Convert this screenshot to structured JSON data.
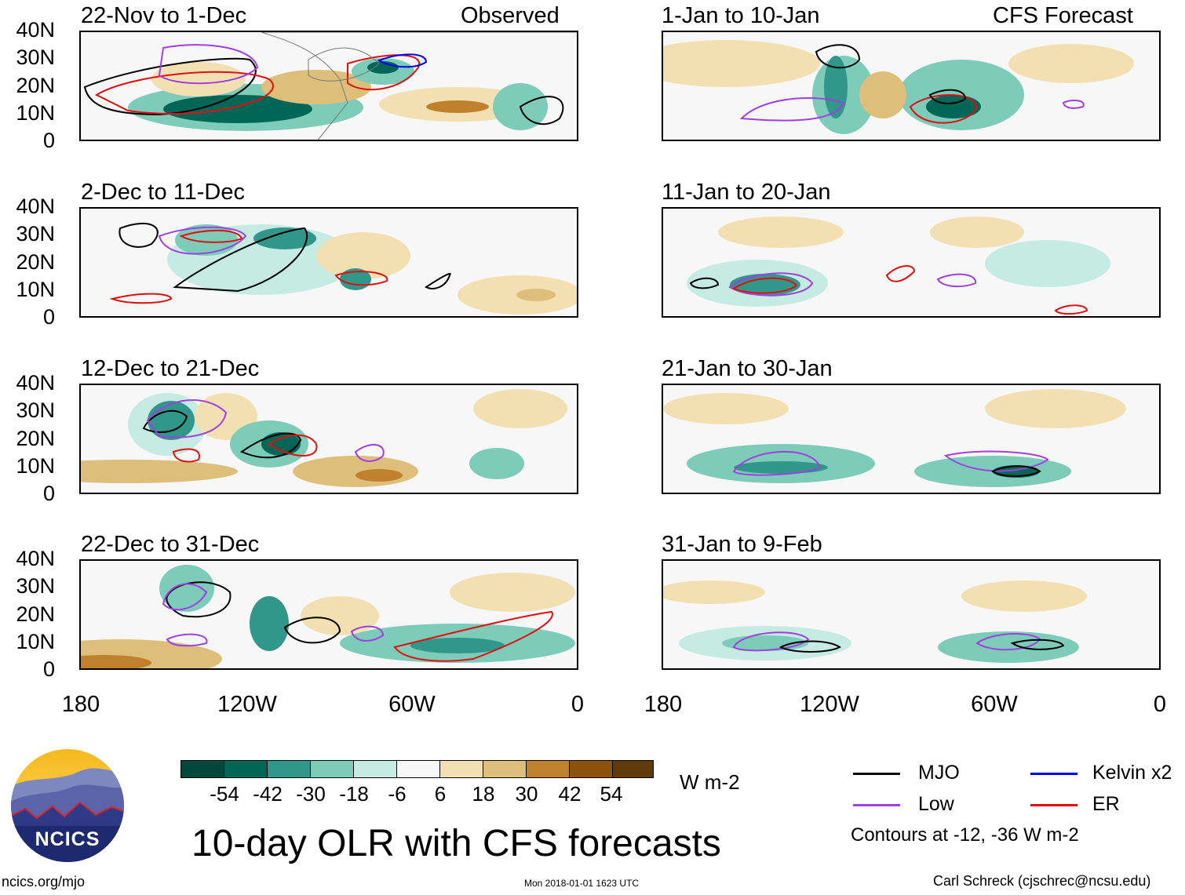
{
  "panels": {
    "observed": [
      {
        "title": "22-Nov to 1-Dec",
        "tag": "Observed"
      },
      {
        "title": "2-Dec to 11-Dec"
      },
      {
        "title": "12-Dec to 21-Dec"
      },
      {
        "title": "22-Dec to 31-Dec"
      }
    ],
    "forecast": [
      {
        "title": "1-Jan to 10-Jan",
        "tag": "CFS Forecast"
      },
      {
        "title": "11-Jan to 20-Jan"
      },
      {
        "title": "21-Jan to 30-Jan"
      },
      {
        "title": "31-Jan to 9-Feb"
      }
    ]
  },
  "axes": {
    "lat_labels": [
      "40N",
      "30N",
      "20N",
      "10N",
      "0"
    ],
    "lon_labels": [
      "180",
      "120W",
      "60W",
      "0"
    ]
  },
  "colorbar": {
    "labels": [
      "-54",
      "-42",
      "-30",
      "-18",
      "-6",
      "6",
      "18",
      "30",
      "42",
      "54"
    ],
    "colors": [
      "#00473c",
      "#006656",
      "#31978a",
      "#7dcbb9",
      "#c6ebe2",
      "#f7f7f7",
      "#f3e0b2",
      "#ddbe7a",
      "#bf812d",
      "#8c510a",
      "#5f3908"
    ],
    "units": "W m-2"
  },
  "legend": {
    "items": [
      {
        "label": "MJO",
        "color": "#000000"
      },
      {
        "label": "Kelvin x2",
        "color": "#0000ee"
      },
      {
        "label": "Low",
        "color": "#a040e0"
      },
      {
        "label": "ER",
        "color": "#e01010"
      }
    ],
    "note": "Contours at -12, -36 W m-2"
  },
  "logo": {
    "text": "NCICS"
  },
  "main_title": "10-day OLR with CFS forecasts",
  "footer": {
    "site": "ncics.org/mjo",
    "timestamp": "Mon 2018-01-01 1623 UTC",
    "author": "Carl Schreck (cjschrec@ncsu.edu)"
  }
}
